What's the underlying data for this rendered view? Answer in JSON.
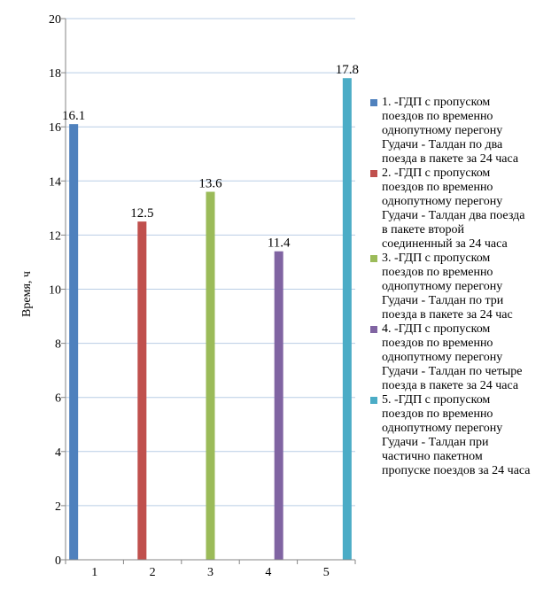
{
  "chart_data": {
    "type": "bar",
    "categories": [
      "1",
      "2",
      "3",
      "4",
      "5"
    ],
    "ylabel": "Время, ч",
    "xlabel": "",
    "ylim": [
      0,
      20
    ],
    "yticks": [
      "0",
      "2",
      "4",
      "6",
      "8",
      "10",
      "12",
      "14",
      "16",
      "18",
      "20"
    ],
    "grid": true,
    "legend_position": "right",
    "series": [
      {
        "name": "1. -ГДП с пропуском поездов по временно однопутному перегону Гудачи - Талдан по два поезда в пакете за 24 часа",
        "legend_text": "1. -ГДП с пропуском\nпоездов по временно\nоднопутному перегону\nГудачи - Талдан по два\nпоезда в пакете за 24 часа",
        "color": "#4f81bd",
        "values": [
          16.1,
          null,
          null,
          null,
          null
        ],
        "labels": [
          "16.1",
          null,
          null,
          null,
          null
        ]
      },
      {
        "name": "2. -ГДП с пропуском поездов по временно однопутному перегону Гудачи - Талдан  два поезда в пакете второй соединенный за 24 часа",
        "legend_text": "2. -ГДП с пропуском\nпоездов по временно\nоднопутному перегону\nГудачи - Талдан  два поезда\nв пакете второй\nсоединенный за 24 часа",
        "color": "#c0504d",
        "values": [
          null,
          12.5,
          null,
          null,
          null
        ],
        "labels": [
          null,
          "12.5",
          null,
          null,
          null
        ]
      },
      {
        "name": "3. -ГДП с пропуском поездов по временно однопутному перегону Гудачи - Талдан по три поезда в пакете за 24 час",
        "legend_text": "3. -ГДП с пропуском\nпоездов по временно\nоднопутному перегону\nГудачи - Талдан по три\nпоезда в пакете за 24 час",
        "color": "#9bbb59",
        "values": [
          null,
          null,
          13.6,
          null,
          null
        ],
        "labels": [
          null,
          null,
          "13.6",
          null,
          null
        ]
      },
      {
        "name": "4. -ГДП с пропуском поездов по временно однопутному перегону Гудачи - Талдан по четыре поезда в пакете за 24 часа",
        "legend_text": "4. -ГДП с пропуском\nпоездов по временно\nоднопутному перегону\nГудачи - Талдан по четыре\nпоезда в пакете за 24 часа",
        "color": "#8064a2",
        "values": [
          null,
          null,
          null,
          11.4,
          null
        ],
        "labels": [
          null,
          null,
          null,
          "11.4",
          null
        ]
      },
      {
        "name": "5. -ГДП с пропуском поездов по временно однопутному перегону Гудачи - Талдан при частично пакетном пропуске поездов за 24 часа",
        "legend_text": "5. -ГДП с пропуском\nпоездов по временно\nоднопутному перегону\nГудачи - Талдан при\nчастично пакетном\nпропуске поездов за 24 часа",
        "color": "#4bacc6",
        "values": [
          null,
          null,
          null,
          null,
          17.8
        ],
        "labels": [
          null,
          null,
          null,
          null,
          "17.8"
        ]
      }
    ]
  }
}
